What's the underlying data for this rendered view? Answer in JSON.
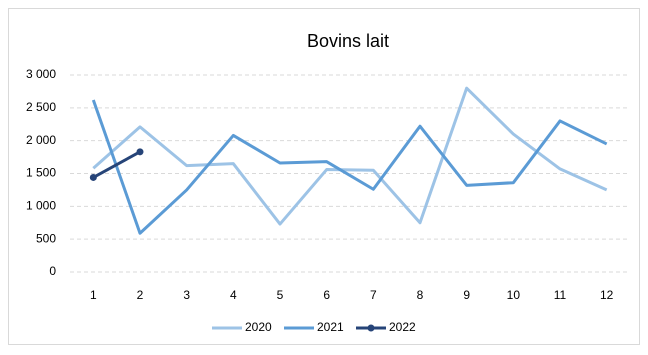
{
  "chart_data": {
    "type": "line",
    "title": "Bovins lait",
    "categories": [
      "1",
      "2",
      "3",
      "4",
      "5",
      "6",
      "7",
      "8",
      "9",
      "10",
      "11",
      "12"
    ],
    "series": [
      {
        "name": "2020",
        "color": "#9dc3e6",
        "marker": false,
        "values": [
          1580,
          2210,
          1620,
          1650,
          730,
          1560,
          1550,
          750,
          2800,
          2100,
          1570,
          1250
        ]
      },
      {
        "name": "2021",
        "color": "#5b9bd5",
        "marker": false,
        "values": [
          2620,
          590,
          1250,
          2080,
          1660,
          1680,
          1260,
          2220,
          1320,
          1360,
          2300,
          1950
        ]
      },
      {
        "name": "2022",
        "color": "#264478",
        "marker": true,
        "values": [
          1440,
          1830,
          null,
          null,
          null,
          null,
          null,
          null,
          null,
          null,
          null,
          null
        ]
      }
    ],
    "ylim": [
      0,
      3000
    ],
    "yticks": [
      0,
      500,
      {
        "value": 1000,
        "label": "1 000"
      },
      {
        "value": 1500,
        "label": "1 500"
      },
      {
        "value": 2000,
        "label": "2 000"
      },
      {
        "value": 2500,
        "label": "2 500"
      },
      {
        "value": 3000,
        "label": "3 000"
      }
    ],
    "grid": true,
    "legend": "bottom"
  }
}
